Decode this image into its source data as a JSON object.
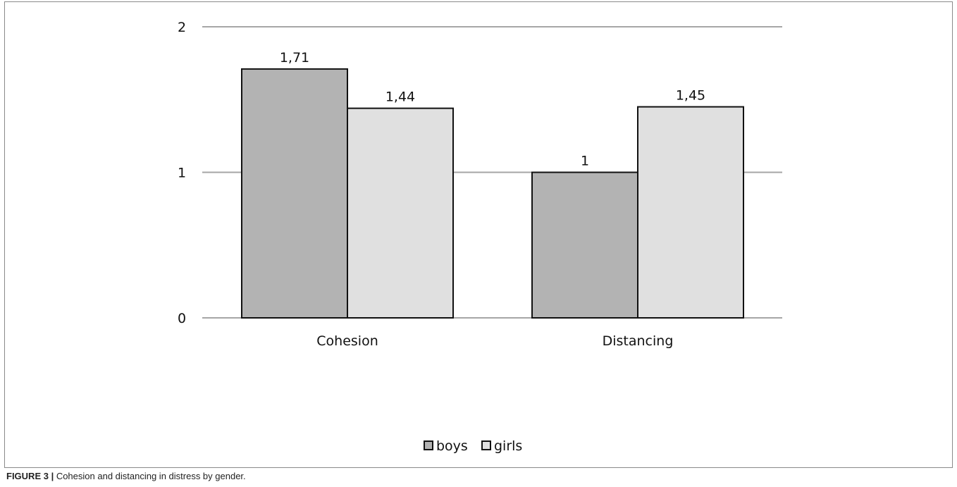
{
  "chart_data": {
    "type": "bar",
    "categories": [
      "Cohesion",
      "Distancing"
    ],
    "series": [
      {
        "name": "boys",
        "values": [
          1.71,
          1
        ],
        "labels": [
          "1,71",
          "1"
        ],
        "color": "#b3b3b3"
      },
      {
        "name": "girls",
        "values": [
          1.44,
          1.45
        ],
        "labels": [
          "1,44",
          "1,45"
        ],
        "color": "#e0e0e0"
      }
    ],
    "ylim": [
      0,
      2
    ],
    "yticks": [
      0,
      1,
      2
    ],
    "grid": true,
    "legend_position": "bottom",
    "gridline_color": "#a6a6a6",
    "bar_outline_color": "#111111"
  },
  "caption": {
    "figure_number": "FIGURE 3 |",
    "text": " Cohesion and distancing in distress by gender."
  }
}
